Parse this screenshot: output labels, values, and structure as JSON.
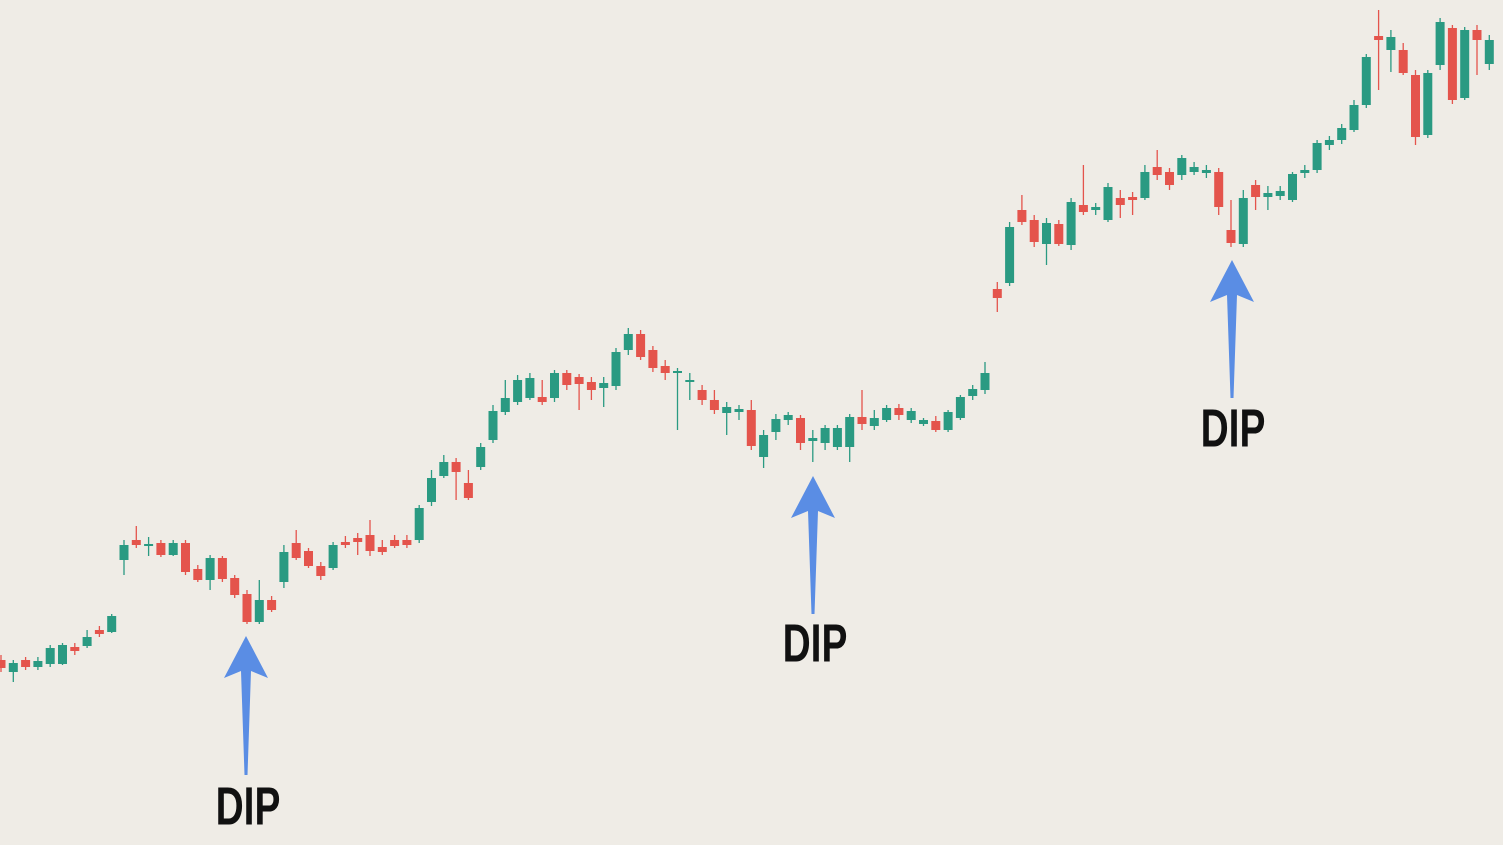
{
  "chart_data": {
    "type": "candlestick",
    "up_color": "#2a9a82",
    "down_color": "#e4544c",
    "ylim": [
      0,
      84.5
    ],
    "annotations": [
      "DIP",
      "DIP",
      "DIP"
    ],
    "ohlc": [
      [
        18.5,
        19,
        17.3,
        17.7
      ],
      [
        17.3,
        18.5,
        16.3,
        18.2
      ],
      [
        18.5,
        18.8,
        17.5,
        17.8
      ],
      [
        17.8,
        18.8,
        17.5,
        18.4
      ],
      [
        18.1,
        20,
        17.8,
        19.7
      ],
      [
        18.1,
        20.2,
        18,
        20
      ],
      [
        19.8,
        20.2,
        19,
        19.4
      ],
      [
        19.9,
        21.5,
        19.7,
        20.8
      ],
      [
        21.5,
        21.9,
        20.8,
        21.1
      ],
      [
        21.3,
        23.1,
        21.2,
        22.9
      ],
      [
        28.5,
        30.5,
        27,
        30
      ],
      [
        30.5,
        31.9,
        29.7,
        30
      ],
      [
        29.9,
        30.8,
        28.9,
        30.1
      ],
      [
        30.2,
        30.5,
        28.8,
        29
      ],
      [
        29,
        30.5,
        28.9,
        30.2
      ],
      [
        30.2,
        30.5,
        27,
        27.3
      ],
      [
        27.6,
        28,
        26.3,
        26.5
      ],
      [
        26.5,
        29,
        25.5,
        28.7
      ],
      [
        28.7,
        28.9,
        26.3,
        26.6
      ],
      [
        26.7,
        27,
        24.7,
        25
      ],
      [
        25.1,
        25.5,
        22.1,
        22.3
      ],
      [
        22.3,
        26.5,
        22.1,
        24.5
      ],
      [
        24.5,
        24.9,
        23.3,
        23.5
      ],
      [
        26.3,
        30,
        25.7,
        29.3
      ],
      [
        30.2,
        31.5,
        28.5,
        28.7
      ],
      [
        29.4,
        29.7,
        27.7,
        27.9
      ],
      [
        27.9,
        28.3,
        26.5,
        26.9
      ],
      [
        27.7,
        30.3,
        27.5,
        30
      ],
      [
        30.3,
        30.9,
        29.7,
        30
      ],
      [
        30.7,
        31.2,
        29,
        30.3
      ],
      [
        31,
        32.5,
        28.9,
        29.4
      ],
      [
        29.8,
        30.5,
        29,
        29.3
      ],
      [
        30.5,
        31,
        29.7,
        29.9
      ],
      [
        30.5,
        31,
        29.7,
        30
      ],
      [
        30.5,
        34,
        30.2,
        33.7
      ],
      [
        34.3,
        37.5,
        33.9,
        36.7
      ],
      [
        36.9,
        39,
        36.7,
        38.3
      ],
      [
        38.3,
        38.7,
        34.5,
        37.3
      ],
      [
        36.2,
        37.5,
        34.5,
        34.7
      ],
      [
        37.8,
        40.2,
        37.5,
        39.8
      ],
      [
        40.5,
        44,
        40.2,
        43.4
      ],
      [
        43.3,
        46.5,
        43,
        44.7
      ],
      [
        44.3,
        47,
        44,
        46.5
      ],
      [
        44.7,
        47.2,
        44.5,
        46.7
      ],
      [
        44.8,
        46.5,
        44,
        44.3
      ],
      [
        44.7,
        47.5,
        44.3,
        47.2
      ],
      [
        47.2,
        47.5,
        45.5,
        46
      ],
      [
        46.8,
        47.1,
        43.5,
        46.1
      ],
      [
        46.3,
        46.8,
        44.5,
        45.5
      ],
      [
        45.7,
        46.8,
        43.8,
        46.2
      ],
      [
        45.9,
        49.7,
        45.5,
        49.3
      ],
      [
        49.5,
        51.7,
        49,
        51.1
      ],
      [
        51.1,
        51.5,
        48.5,
        48.8
      ],
      [
        49.5,
        49.9,
        47.3,
        47.7
      ],
      [
        47.9,
        48.5,
        46.5,
        47.2
      ],
      [
        47.2,
        47.7,
        41.5,
        47.4
      ],
      [
        46.3,
        47.2,
        44.5,
        46.5
      ],
      [
        45.5,
        46,
        44,
        44.5
      ],
      [
        44.5,
        45.5,
        43.1,
        43.5
      ],
      [
        43.2,
        44.3,
        41,
        43.8
      ],
      [
        43.3,
        44,
        42.5,
        43.6
      ],
      [
        43.5,
        44.5,
        39.5,
        39.9
      ],
      [
        38.8,
        41.5,
        37.7,
        41
      ],
      [
        41.3,
        43.1,
        40.5,
        42.6
      ],
      [
        42.5,
        43.3,
        42,
        43
      ],
      [
        42.7,
        43,
        39.5,
        40.2
      ],
      [
        40.4,
        41.5,
        38.3,
        40.7
      ],
      [
        40.2,
        42,
        39.5,
        41.7
      ],
      [
        39.8,
        42,
        39.5,
        41.7
      ],
      [
        39.8,
        43.1,
        38.3,
        42.8
      ],
      [
        42.8,
        45.5,
        41.5,
        42.1
      ],
      [
        41.9,
        43.5,
        41.5,
        42.7
      ],
      [
        42.5,
        44,
        42.3,
        43.7
      ],
      [
        43.7,
        44.1,
        42.5,
        43
      ],
      [
        42.5,
        43.7,
        42.2,
        43.4
      ],
      [
        42.1,
        42.7,
        41.9,
        42.5
      ],
      [
        42.4,
        42.9,
        41.3,
        41.5
      ],
      [
        41.5,
        43.5,
        41.3,
        43.3
      ],
      [
        42.7,
        45,
        42.5,
        44.8
      ],
      [
        44.9,
        46,
        44.5,
        45.6
      ],
      [
        45.5,
        48.3,
        45.1,
        47.2
      ],
      [
        55.6,
        56.3,
        53.3,
        54.7
      ],
      [
        56.2,
        62.3,
        55.9,
        61.8
      ],
      [
        63.5,
        65,
        62,
        62.3
      ],
      [
        62.5,
        63,
        59.8,
        60.3
      ],
      [
        60.1,
        62.7,
        58,
        62.2
      ],
      [
        62.1,
        62.5,
        59.9,
        60.1
      ],
      [
        60,
        64.7,
        59.5,
        64.3
      ],
      [
        64,
        68,
        63,
        63.3
      ],
      [
        63.5,
        64.2,
        63,
        63.8
      ],
      [
        62.5,
        66.2,
        62.3,
        65.8
      ],
      [
        64.7,
        65.5,
        62.7,
        64
      ],
      [
        64.8,
        65.3,
        63,
        64.5
      ],
      [
        64.7,
        68,
        64.5,
        67.3
      ],
      [
        67.8,
        69.5,
        66.5,
        67
      ],
      [
        67.3,
        67.7,
        65.5,
        66
      ],
      [
        67,
        69,
        66.5,
        68.7
      ],
      [
        67.3,
        68.3,
        67,
        67.8
      ],
      [
        67.2,
        68,
        66.7,
        67.5
      ],
      [
        67.3,
        67.7,
        63,
        63.8
      ],
      [
        61.5,
        64.5,
        59.8,
        60.2
      ],
      [
        60.1,
        65.5,
        59.8,
        64.7
      ],
      [
        66,
        66.5,
        63.5,
        64.8
      ],
      [
        64.8,
        65.9,
        63.5,
        65.2
      ],
      [
        64.9,
        65.9,
        64.5,
        65.4
      ],
      [
        64.5,
        67.3,
        64.3,
        67.1
      ],
      [
        67.2,
        68,
        66.7,
        67.5
      ],
      [
        67.5,
        70.5,
        67.2,
        70.2
      ],
      [
        70,
        70.9,
        69.5,
        70.5
      ],
      [
        70.5,
        72.1,
        70.1,
        71.7
      ],
      [
        71.5,
        74.5,
        71.3,
        74
      ],
      [
        74,
        79.1,
        73.7,
        78.8
      ],
      [
        80.9,
        83.5,
        75.5,
        80.5
      ],
      [
        79.5,
        81.5,
        77.3,
        80.8
      ],
      [
        79.5,
        80.2,
        77,
        77.2
      ],
      [
        77,
        77.5,
        70,
        70.8
      ],
      [
        71,
        77.5,
        70.7,
        77.2
      ],
      [
        78,
        82.7,
        77.5,
        82.3
      ],
      [
        81.7,
        82,
        74.1,
        74.5
      ],
      [
        74.7,
        81.8,
        74.5,
        81.5
      ],
      [
        81.5,
        82,
        77,
        80.5
      ],
      [
        78.1,
        81,
        77.5,
        80.5
      ]
    ]
  }
}
